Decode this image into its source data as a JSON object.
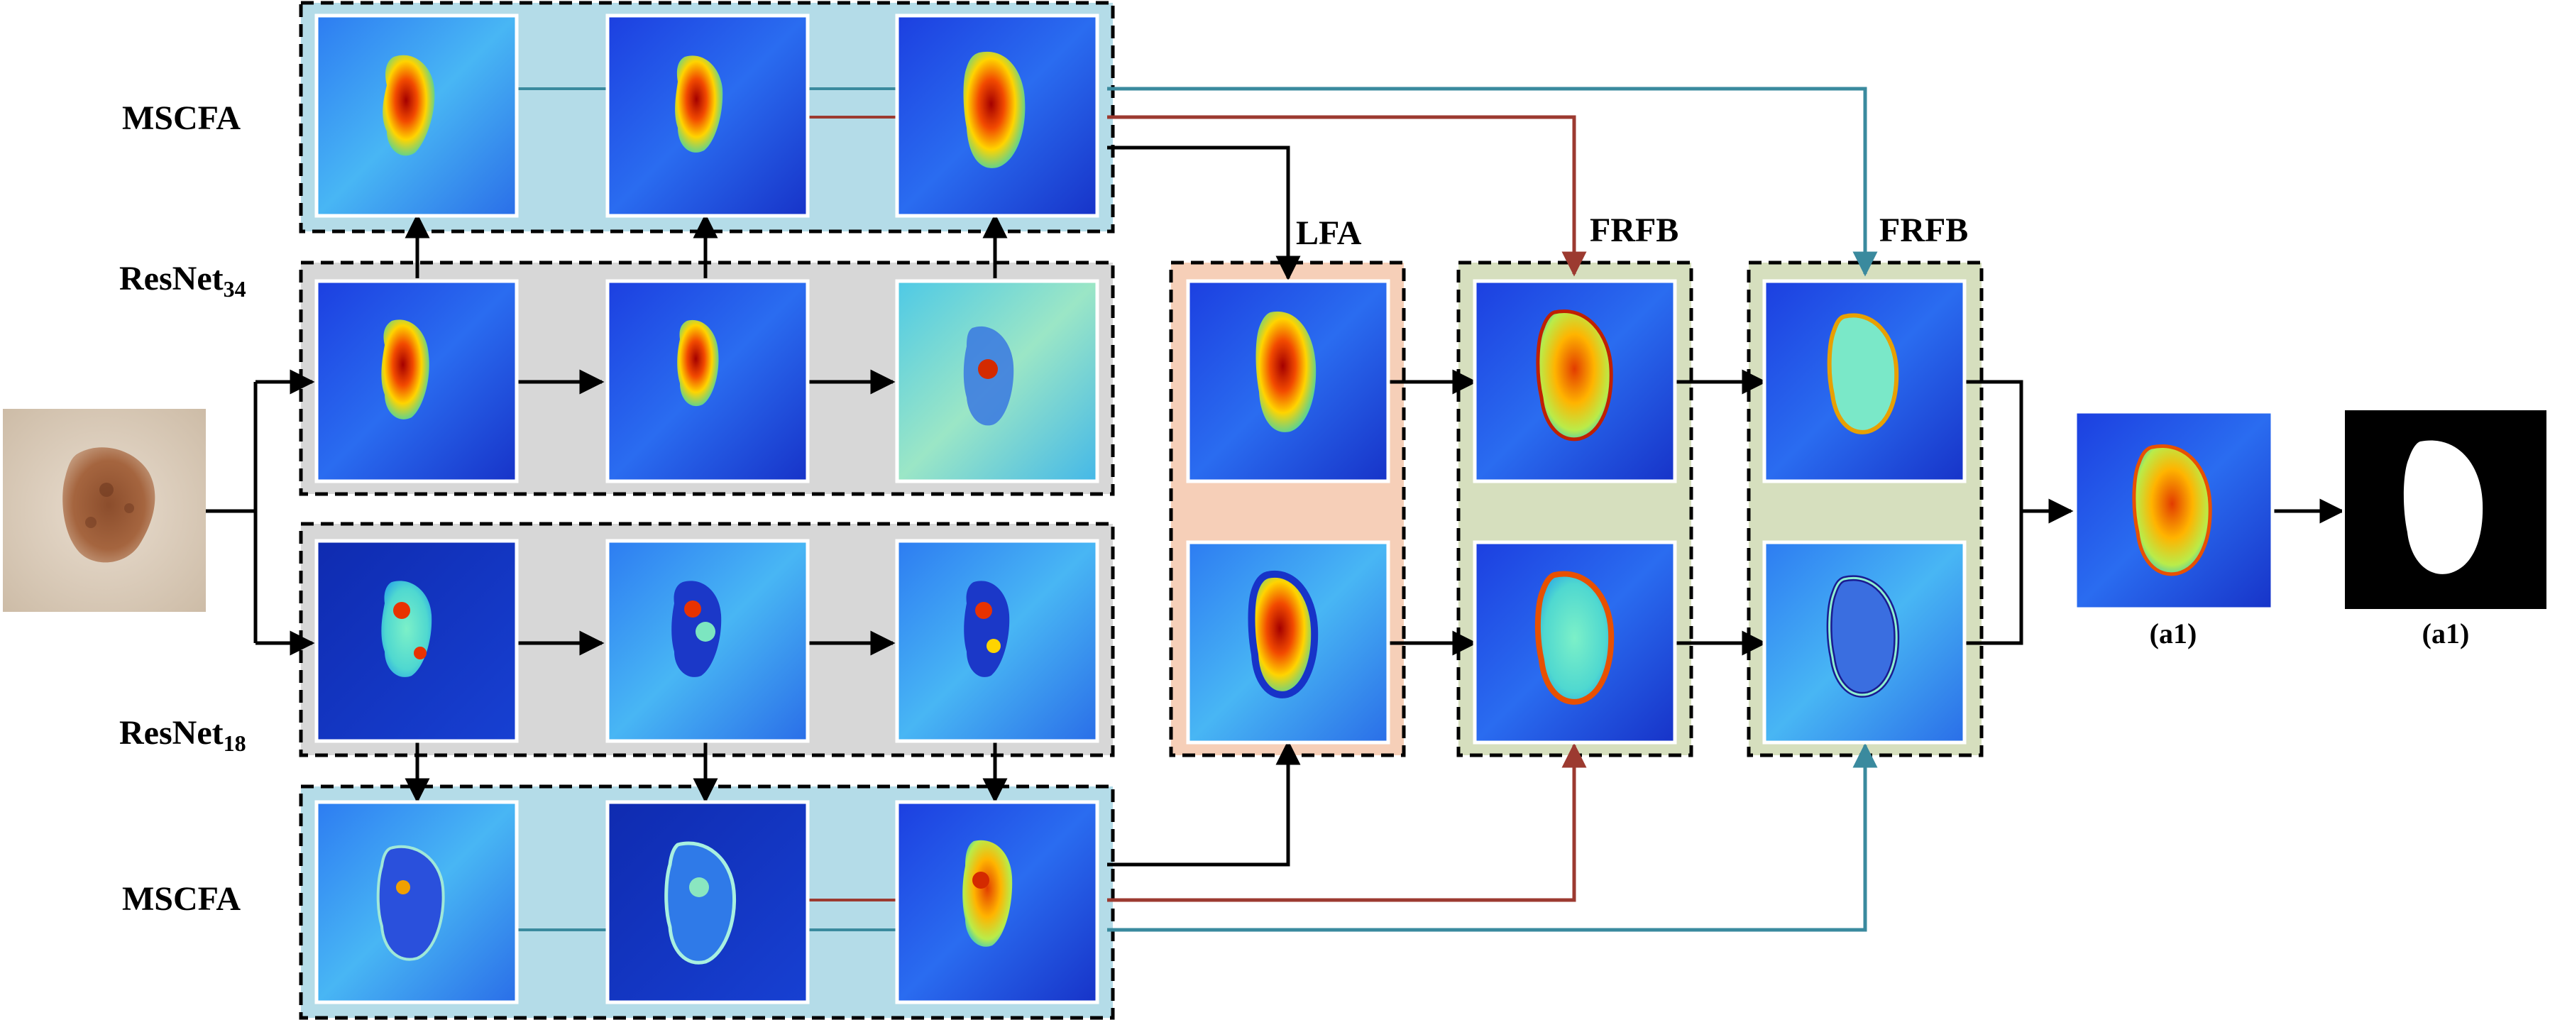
{
  "labels": {
    "mscfa_top": "MSCFA",
    "resnet34_base": "ResNet",
    "resnet34_sub": "34",
    "resnet18_base": "ResNet",
    "resnet18_sub": "18",
    "mscfa_bottom": "MSCFA",
    "lfa": "LFA",
    "frfb_1": "FRFB",
    "frfb_2": "FRFB",
    "output_caption": "(a1)",
    "gt_caption": "(a1)"
  },
  "colors": {
    "mscfa_bg": "#b4dce8",
    "resnet_bg": "#d7d7d7",
    "lfa_bg": "#f6cfb8",
    "frfb_bg": "#d6dfbe",
    "arrow_black": "#000000",
    "arrow_red": "#9c3a30",
    "arrow_teal": "#3a8a9e"
  },
  "images": {
    "input": "dermoscopy-input-image",
    "mscfa_top": [
      "heatmap-mscfa-top-1",
      "heatmap-mscfa-top-2",
      "heatmap-mscfa-top-3"
    ],
    "resnet34": [
      "heatmap-resnet34-1",
      "heatmap-resnet34-2",
      "heatmap-resnet34-3"
    ],
    "resnet18": [
      "heatmap-resnet18-1",
      "heatmap-resnet18-2",
      "heatmap-resnet18-3"
    ],
    "mscfa_bottom": [
      "heatmap-mscfa-bottom-1",
      "heatmap-mscfa-bottom-2",
      "heatmap-mscfa-bottom-3"
    ],
    "lfa": [
      "heatmap-lfa-top",
      "heatmap-lfa-bottom"
    ],
    "frfb1": [
      "heatmap-frfb1-top",
      "heatmap-frfb1-bottom"
    ],
    "frfb2": [
      "heatmap-frfb2-top",
      "heatmap-frfb2-bottom"
    ],
    "output": "heatmap-output",
    "mask": "binary-mask-output"
  }
}
